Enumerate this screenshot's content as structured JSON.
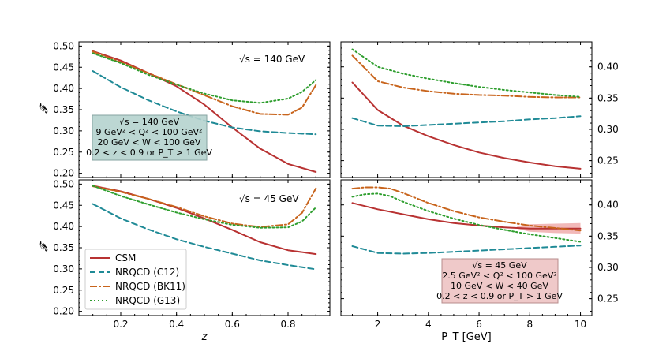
{
  "legend": {
    "entries": [
      {
        "key": "CSM",
        "label": "CSM"
      },
      {
        "key": "C12",
        "label": "NRQCD (C12)"
      },
      {
        "key": "BK11",
        "label": "NRQCD (BK11)"
      },
      {
        "key": "G13",
        "label": "NRQCD (G13)"
      }
    ]
  },
  "chart_data": [
    {
      "type": "line",
      "panel": "top-left",
      "ylabel": "𝓕",
      "xlabel": "",
      "xlim": [
        0.05,
        0.95
      ],
      "ylim": [
        0.19,
        0.51
      ],
      "xticks": [
        "0.2",
        "0.4",
        "0.6",
        "0.8"
      ],
      "yticks": [
        "0.20",
        "0.25",
        "0.30",
        "0.35",
        "0.40",
        "0.45",
        "0.50"
      ],
      "annotation": "√s = 140 GeV",
      "infobox": [
        "√s = 140 GeV",
        "9 GeV² < Q² < 100 GeV²",
        "20 GeV < W < 100 GeV",
        "0.2 < z < 0.9 or P_T > 1 GeV"
      ],
      "series": [
        {
          "name": "CSM",
          "x": [
            0.1,
            0.2,
            0.3,
            0.4,
            0.5,
            0.6,
            0.7,
            0.8,
            0.9
          ],
          "y": [
            0.488,
            0.466,
            0.436,
            0.405,
            0.362,
            0.308,
            0.258,
            0.222,
            0.203
          ]
        },
        {
          "name": "NRQCD (C12)",
          "x": [
            0.1,
            0.2,
            0.3,
            0.4,
            0.5,
            0.6,
            0.7,
            0.8,
            0.9
          ],
          "y": [
            0.441,
            0.403,
            0.372,
            0.346,
            0.324,
            0.308,
            0.299,
            0.295,
            0.292
          ]
        },
        {
          "name": "NRQCD (BK11)",
          "x": [
            0.1,
            0.2,
            0.3,
            0.4,
            0.5,
            0.6,
            0.7,
            0.8,
            0.85,
            0.9
          ],
          "y": [
            0.487,
            0.462,
            0.436,
            0.41,
            0.384,
            0.358,
            0.34,
            0.338,
            0.355,
            0.408
          ]
        },
        {
          "name": "NRQCD (G13)",
          "x": [
            0.1,
            0.2,
            0.3,
            0.4,
            0.5,
            0.6,
            0.7,
            0.8,
            0.85,
            0.9
          ],
          "y": [
            0.483,
            0.46,
            0.432,
            0.409,
            0.388,
            0.372,
            0.366,
            0.376,
            0.392,
            0.42
          ]
        }
      ]
    },
    {
      "type": "line",
      "panel": "top-right",
      "ylabel": "",
      "xlabel": "",
      "xlim": [
        0.55,
        10.45
      ],
      "ylim": [
        0.223,
        0.44
      ],
      "xticks": [
        "2",
        "4",
        "6",
        "8",
        "10"
      ],
      "yticks": [
        "0.25",
        "0.30",
        "0.35",
        "0.40"
      ],
      "series": [
        {
          "name": "CSM",
          "x": [
            1,
            2,
            3,
            4,
            5,
            6,
            7,
            8,
            9,
            10
          ],
          "y": [
            0.375,
            0.331,
            0.306,
            0.289,
            0.275,
            0.263,
            0.254,
            0.247,
            0.241,
            0.237
          ]
        },
        {
          "name": "NRQCD (C12)",
          "x": [
            1,
            2,
            3,
            4,
            5,
            6,
            7,
            8,
            9,
            10
          ],
          "y": [
            0.318,
            0.306,
            0.305,
            0.307,
            0.309,
            0.311,
            0.313,
            0.316,
            0.318,
            0.321
          ]
        },
        {
          "name": "NRQCD (BK11)",
          "x": [
            1,
            2,
            3,
            4,
            5,
            6,
            7,
            8,
            9,
            10
          ],
          "y": [
            0.418,
            0.377,
            0.367,
            0.361,
            0.357,
            0.355,
            0.354,
            0.352,
            0.351,
            0.351
          ]
        },
        {
          "name": "NRQCD (G13)",
          "x": [
            1,
            2,
            3,
            4,
            5,
            6,
            7,
            8,
            9,
            10
          ],
          "y": [
            0.428,
            0.4,
            0.389,
            0.381,
            0.374,
            0.368,
            0.363,
            0.359,
            0.355,
            0.352
          ]
        }
      ]
    },
    {
      "type": "line",
      "panel": "bottom-left",
      "ylabel": "𝓕",
      "xlabel": "z",
      "xlim": [
        0.05,
        0.95
      ],
      "ylim": [
        0.19,
        0.51
      ],
      "xticks": [
        "0.2",
        "0.4",
        "0.6",
        "0.8"
      ],
      "yticks": [
        "0.20",
        "0.25",
        "0.30",
        "0.35",
        "0.40",
        "0.45",
        "0.50"
      ],
      "annotation": "√s = 45 GeV",
      "series": [
        {
          "name": "CSM",
          "x": [
            0.1,
            0.2,
            0.3,
            0.4,
            0.5,
            0.6,
            0.7,
            0.8,
            0.9
          ],
          "y": [
            0.496,
            0.483,
            0.465,
            0.444,
            0.419,
            0.392,
            0.363,
            0.344,
            0.335
          ]
        },
        {
          "name": "NRQCD (C12)",
          "x": [
            0.1,
            0.2,
            0.3,
            0.4,
            0.5,
            0.6,
            0.7,
            0.8,
            0.9
          ],
          "y": [
            0.453,
            0.419,
            0.393,
            0.37,
            0.352,
            0.336,
            0.32,
            0.309,
            0.299
          ]
        },
        {
          "name": "NRQCD (BK11)",
          "x": [
            0.1,
            0.2,
            0.3,
            0.4,
            0.5,
            0.6,
            0.7,
            0.8,
            0.85,
            0.9
          ],
          "y": [
            0.495,
            0.482,
            0.465,
            0.446,
            0.424,
            0.407,
            0.399,
            0.405,
            0.432,
            0.49
          ]
        },
        {
          "name": "NRQCD (G13)",
          "x": [
            0.1,
            0.2,
            0.3,
            0.4,
            0.5,
            0.6,
            0.7,
            0.8,
            0.85,
            0.9
          ],
          "y": [
            0.496,
            0.472,
            0.452,
            0.433,
            0.417,
            0.404,
            0.397,
            0.398,
            0.412,
            0.445
          ]
        }
      ]
    },
    {
      "type": "line",
      "panel": "bottom-right",
      "ylabel": "",
      "xlabel": "P_T [GeV]",
      "xlim": [
        0.55,
        10.45
      ],
      "ylim": [
        0.223,
        0.44
      ],
      "xticks": [
        "2",
        "4",
        "6",
        "8",
        "10"
      ],
      "yticks": [
        "0.25",
        "0.30",
        "0.35",
        "0.40"
      ],
      "infobox": [
        "√s = 45 GeV",
        "2.5 GeV² < Q² < 100 GeV²",
        "10 GeV < W < 40 GeV",
        "0.2 < z < 0.9 or P_T > 1 GeV"
      ],
      "series": [
        {
          "name": "CSM",
          "x": [
            1,
            2,
            3,
            4,
            5,
            6,
            7,
            8,
            9,
            10
          ],
          "y": [
            0.403,
            0.393,
            0.385,
            0.377,
            0.371,
            0.367,
            0.364,
            0.362,
            0.362,
            0.362
          ]
        },
        {
          "name": "NRQCD (C12)",
          "x": [
            1,
            2,
            3,
            4,
            5,
            6,
            7,
            8,
            9,
            10
          ],
          "y": [
            0.334,
            0.323,
            0.322,
            0.323,
            0.325,
            0.327,
            0.329,
            0.331,
            0.333,
            0.335
          ]
        },
        {
          "name": "NRQCD (BK11)",
          "x": [
            1,
            1.5,
            2,
            2.5,
            3,
            4,
            5,
            6,
            7,
            8,
            9,
            10
          ],
          "y": [
            0.426,
            0.428,
            0.428,
            0.426,
            0.419,
            0.403,
            0.39,
            0.38,
            0.373,
            0.367,
            0.363,
            0.359
          ]
        },
        {
          "name": "NRQCD (G13)",
          "x": [
            1,
            1.5,
            2,
            2.5,
            3,
            4,
            5,
            6,
            7,
            8,
            9,
            10
          ],
          "y": [
            0.413,
            0.417,
            0.418,
            0.414,
            0.405,
            0.39,
            0.378,
            0.368,
            0.36,
            0.353,
            0.347,
            0.341
          ]
        }
      ]
    }
  ]
}
